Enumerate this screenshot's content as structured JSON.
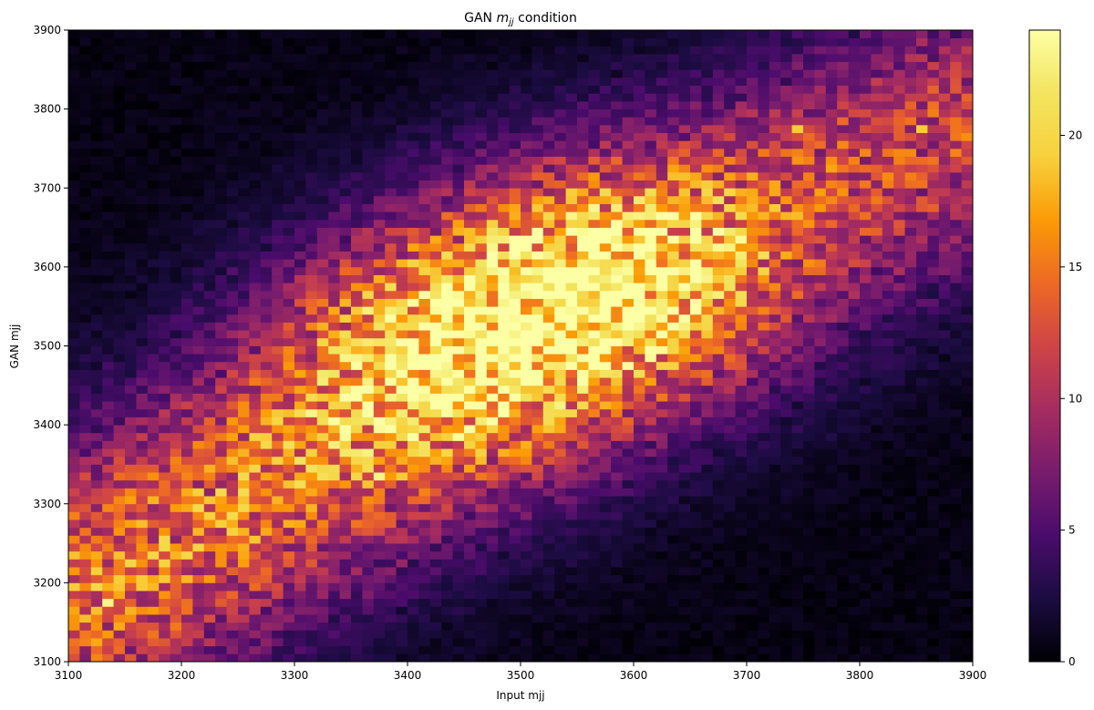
{
  "chart_data": {
    "type": "heatmap",
    "title_main": "GAN ",
    "title_math": "m",
    "title_sub": "jj",
    "title_tail": " condition",
    "xlabel": "Input mjj",
    "ylabel": "GAN mjj",
    "xlim": [
      3100,
      3900
    ],
    "ylim": [
      3100,
      3900
    ],
    "bins_x": 80,
    "bins_y": 80,
    "bin_width": 10,
    "colormap": "inferno",
    "colorbar_range": [
      0,
      24
    ],
    "colorbar_ticks": [
      {
        "value": 0,
        "label": "0"
      },
      {
        "value": 5,
        "label": "5"
      },
      {
        "value": 10,
        "label": "10"
      },
      {
        "value": 15,
        "label": "15"
      },
      {
        "value": 20,
        "label": "20"
      }
    ],
    "xticks": [
      {
        "value": 3100,
        "label": "3100"
      },
      {
        "value": 3200,
        "label": "3200"
      },
      {
        "value": 3300,
        "label": "3300"
      },
      {
        "value": 3400,
        "label": "3400"
      },
      {
        "value": 3500,
        "label": "3500"
      },
      {
        "value": 3600,
        "label": "3600"
      },
      {
        "value": 3700,
        "label": "3700"
      },
      {
        "value": 3800,
        "label": "3800"
      },
      {
        "value": 3900,
        "label": "3900"
      }
    ],
    "yticks": [
      {
        "value": 3100,
        "label": "3100"
      },
      {
        "value": 3200,
        "label": "3200"
      },
      {
        "value": 3300,
        "label": "3300"
      },
      {
        "value": 3400,
        "label": "3400"
      },
      {
        "value": 3500,
        "label": "3500"
      },
      {
        "value": 3600,
        "label": "3600"
      },
      {
        "value": 3700,
        "label": "3700"
      },
      {
        "value": 3800,
        "label": "3800"
      },
      {
        "value": 3900,
        "label": "3900"
      }
    ],
    "grid": false,
    "density_ridges": [
      {
        "x_start": 3100,
        "y_start": 3180,
        "x_end": 3560,
        "y_end": 3560,
        "peak_count": 15
      },
      {
        "x_start": 3460,
        "y_start": 3520,
        "x_end": 3900,
        "y_end": 3780,
        "peak_count": 12
      }
    ],
    "hot_cells": [
      {
        "x": 3135,
        "y": 3175,
        "count": 23
      },
      {
        "x": 3375,
        "y": 3335,
        "count": 23
      },
      {
        "x": 3505,
        "y": 3565,
        "count": 23
      },
      {
        "x": 3625,
        "y": 3645,
        "count": 24
      },
      {
        "x": 3415,
        "y": 3425,
        "count": 20
      },
      {
        "x": 3455,
        "y": 3505,
        "count": 19
      },
      {
        "x": 3745,
        "y": 3775,
        "count": 19
      },
      {
        "x": 3855,
        "y": 3775,
        "count": 19
      },
      {
        "x": 3215,
        "y": 3265,
        "count": 18
      },
      {
        "x": 3165,
        "y": 3205,
        "count": 19
      }
    ]
  }
}
